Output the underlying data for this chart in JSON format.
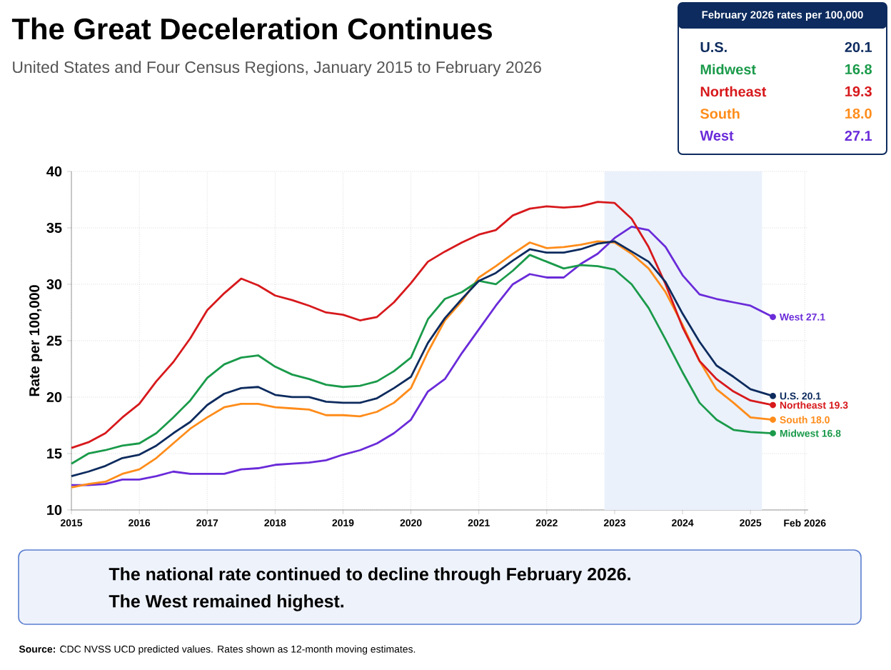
{
  "chart_data": {
    "type": "line",
    "title": "The Great Deceleration Continues",
    "subtitle": "United States and Four Census Regions, January 2015 to February 2026",
    "ylabel": "Rate per 100,000",
    "legend_title": "February 2026 rates per 100,000",
    "legend": "top right",
    "grid": true,
    "line_style": "solid",
    "x": [
      2015,
      2015.25,
      2015.5,
      2015.75,
      2016,
      2016.25,
      2016.5,
      2016.75,
      2017,
      2017.25,
      2017.5,
      2017.75,
      2018,
      2018.25,
      2018.5,
      2018.75,
      2019,
      2019.25,
      2019.5,
      2019.75,
      2020,
      2020.25,
      2020.5,
      2020.75,
      2021,
      2021.25,
      2021.5,
      2021.75,
      2022,
      2022.25,
      2022.5,
      2022.75,
      2023,
      2023.25,
      2023.5,
      2023.75,
      2024,
      2024.25,
      2024.5,
      2024.75,
      2025,
      2025.33
    ],
    "xlim": [
      2015,
      2025.85
    ],
    "xticks": [
      2015,
      2016,
      2017,
      2018,
      2019,
      2020,
      2021,
      2022,
      2023,
      2024,
      2025,
      {
        "value": 2025.8,
        "label": "Feb 2026"
      }
    ],
    "ylim": [
      10,
      40
    ],
    "yticks": [
      10,
      15,
      20,
      25,
      30,
      35,
      40
    ],
    "bands": [
      {
        "axis": "x",
        "from": 2022.85,
        "to": 2025.17,
        "color": "#eaf1fb"
      }
    ],
    "series": [
      {
        "name": "U.S.",
        "color": "#0d2b5e",
        "values": [
          13.0,
          13.4,
          13.9,
          14.6,
          14.9,
          15.7,
          16.8,
          17.8,
          19.3,
          20.3,
          20.8,
          20.9,
          20.2,
          20.0,
          20.0,
          19.6,
          19.5,
          19.5,
          19.9,
          20.8,
          21.8,
          24.8,
          27.0,
          28.7,
          30.3,
          31.0,
          32.1,
          33.1,
          32.8,
          32.8,
          33.1,
          33.6,
          33.8,
          32.9,
          32.0,
          30.2,
          27.4,
          24.9,
          22.8,
          21.8,
          20.7,
          20.1
        ]
      },
      {
        "name": "Midwest",
        "color": "#1a9a4a",
        "values": [
          14.1,
          15.0,
          15.3,
          15.7,
          15.9,
          16.8,
          18.2,
          19.7,
          21.7,
          22.9,
          23.5,
          23.7,
          22.7,
          22.0,
          21.6,
          21.1,
          20.9,
          21.0,
          21.4,
          22.3,
          23.5,
          26.9,
          28.7,
          29.3,
          30.3,
          30.0,
          31.2,
          32.6,
          32.0,
          31.4,
          31.7,
          31.6,
          31.3,
          30.0,
          27.9,
          25.1,
          22.2,
          19.5,
          18.0,
          17.1,
          16.9,
          16.8
        ]
      },
      {
        "name": "Northeast",
        "color": "#d7191c",
        "values": [
          15.5,
          16.0,
          16.8,
          18.2,
          19.4,
          21.4,
          23.1,
          25.2,
          27.7,
          29.2,
          30.5,
          29.9,
          29.0,
          28.6,
          28.1,
          27.5,
          27.3,
          26.8,
          27.1,
          28.4,
          30.1,
          32.0,
          32.9,
          33.7,
          34.4,
          34.8,
          36.1,
          36.7,
          36.9,
          36.8,
          36.9,
          37.3,
          37.2,
          35.8,
          33.3,
          30.0,
          26.2,
          23.2,
          21.6,
          20.5,
          19.7,
          19.3
        ]
      },
      {
        "name": "South",
        "color": "#ff8c1a",
        "values": [
          12.0,
          12.3,
          12.5,
          13.2,
          13.6,
          14.6,
          15.9,
          17.2,
          18.2,
          19.1,
          19.4,
          19.4,
          19.1,
          19.0,
          18.9,
          18.4,
          18.4,
          18.3,
          18.7,
          19.5,
          20.8,
          24.0,
          26.8,
          28.5,
          30.6,
          31.6,
          32.7,
          33.7,
          33.2,
          33.3,
          33.5,
          33.8,
          33.7,
          32.7,
          31.4,
          29.3,
          26.4,
          23.2,
          20.7,
          19.5,
          18.2,
          18.0
        ]
      },
      {
        "name": "West",
        "color": "#6a2bd9",
        "values": [
          12.2,
          12.2,
          12.3,
          12.7,
          12.7,
          13.0,
          13.4,
          13.2,
          13.2,
          13.2,
          13.6,
          13.7,
          14.0,
          14.1,
          14.2,
          14.4,
          14.9,
          15.3,
          15.9,
          16.8,
          18.0,
          20.5,
          21.6,
          23.9,
          26.0,
          28.1,
          30.0,
          30.9,
          30.6,
          30.6,
          31.8,
          32.7,
          34.1,
          35.1,
          34.8,
          33.3,
          30.8,
          29.1,
          28.7,
          28.4,
          28.1,
          27.1
        ]
      }
    ],
    "annotations": [
      "20.1",
      "16.8",
      "19.3",
      "18.0",
      "27.1",
      "U.S. 20.1",
      "Midwest 16.8",
      "Northeast 19.3",
      "South 18.0",
      "West 27.1",
      "The national rate continued to decline through February 2026.",
      "The West remained highest.",
      "**Source:** CDC NVSS UCD predicted values. Rates shown as 12-month moving estimates."
    ]
  }
}
